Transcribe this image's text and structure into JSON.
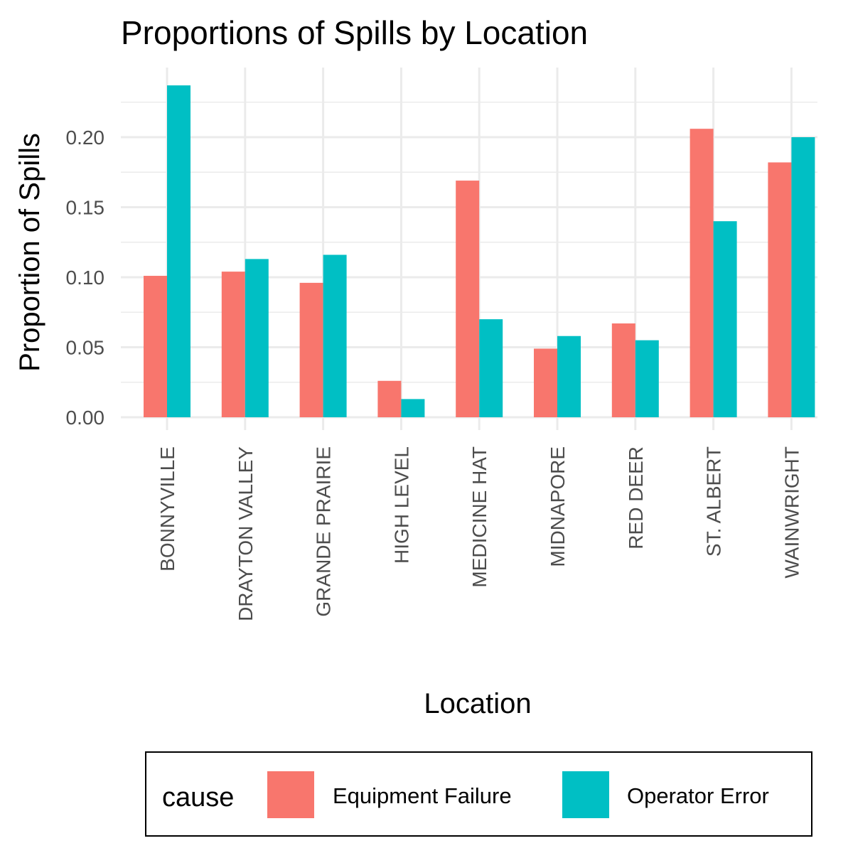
{
  "chart_data": {
    "type": "bar",
    "title": "Proportions of Spills by Location",
    "xlabel": "Location",
    "ylabel": "Proportion of Spills",
    "categories": [
      "BONNYVILLE",
      "DRAYTON VALLEY",
      "GRANDE PRAIRIE",
      "HIGH LEVEL",
      "MEDICINE HAT",
      "MIDNAPORE",
      "RED DEER",
      "ST. ALBERT",
      "WAINWRIGHT"
    ],
    "series": [
      {
        "name": "Equipment Failure",
        "color": "#F8766D",
        "values": [
          0.101,
          0.104,
          0.096,
          0.026,
          0.169,
          0.049,
          0.067,
          0.206,
          0.182
        ]
      },
      {
        "name": "Operator Error",
        "color": "#00BFC4",
        "values": [
          0.237,
          0.113,
          0.116,
          0.013,
          0.07,
          0.058,
          0.055,
          0.14,
          0.2
        ]
      }
    ],
    "yticks": [
      "0.00",
      "0.05",
      "0.10",
      "0.15",
      "0.20"
    ],
    "ylim": [
      0,
      0.24
    ],
    "grid": true,
    "legend": {
      "title": "cause",
      "position": "bottom"
    }
  }
}
